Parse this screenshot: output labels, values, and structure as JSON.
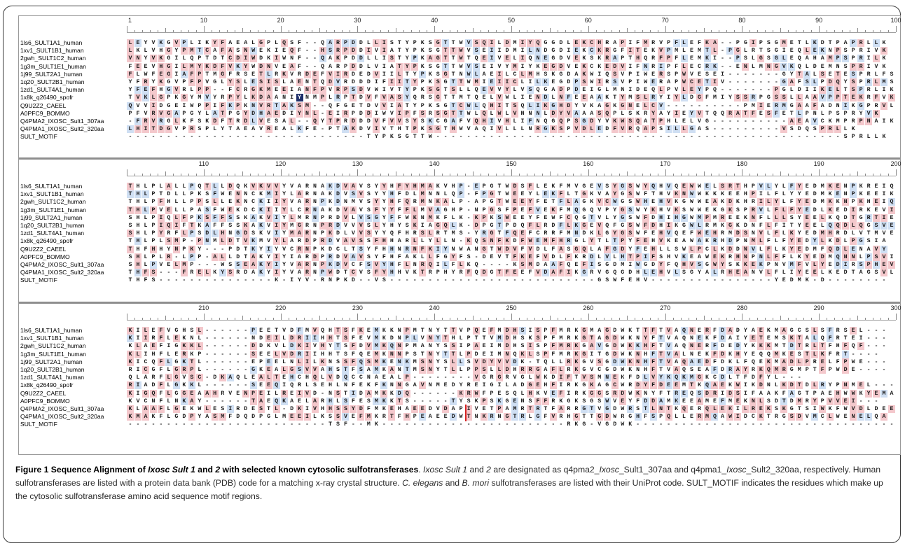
{
  "names": [
    "1ls6_SULT1A1_human",
    "1xv1_SULT1B1_human",
    "2gwh_SULT1C2_human",
    "1g3m_SULT1E1_human",
    "1j99_SULT2A1_human",
    "1q20_SULT2B1_human",
    "1zd1_SULT4A1_human",
    "1x8k_q26490_spofr",
    "Q9U2Z2_CAEEL",
    "A0PFC9_BOMMO",
    "Q4PMA2_IXOSC_Sult1_307aa",
    "Q4PMA1_IXOSC_Sult2_320aa",
    "SULT_MOTIF"
  ],
  "blocks": [
    {
      "ticks": [
        "1",
        "10",
        "20",
        "30",
        "40",
        "50",
        "60",
        "70",
        "80",
        "90",
        "100"
      ],
      "rows": [
        "LEYVKGVPLIKYFAEALGPLQSF--QARPDDLLISTYPKSGTTWVSQILDMIYQGGDLEKCHRAPIFMRVPFLEFKA--PGIPSGMETLKDTPAPRLLK",
        "LKLVHGYPMTCAFASNWEKIEQF--HSRPDDIVIATYPKSGTTWVSEIIDMILNDGDIEKCKRGFITEKVPMLEMTL-PGLRTSGIEQLEKNPSPRIVK",
        "VNYVKGILQPTDTCDIWDKIWNF--QAKPDDLLISTYPKAGTTWTQEIVELIQNEGDVEKSKRAPTHQRFPFLEMKI--PSLGSGLEQAHAMPSPRILK",
        "FEEVHGILMYKDFVKYWDNVEAF--QARPDDLVIATYPKSGTTWVSEIVYMIYKEGDVEKCKEDVIFNRIPFLECRK--ENLMNGVKQLDEMNSPRIVK",
        "FLWFEGIAFPTMGFRSETLRKVRDEFVIRDEDVIILTYPKSGTNWLAEILCLMHSKGDAKWIQSVPIWERSPWVESEI-------GYTALSETESPRLFS",
        "YFRYKGVPFPVGLYSLESISLAENTQDVRDDDIFIITYPKSGTTWMIEIICLILKEGDPSWIRSVPIWERAPWCETIV-------GAFSLPDQYSPRLMS",
        "YFEFHGVRLPP--FCRGKMEEIANFPVRPSDVWIVTYPKSGTSLLQEVVYLVSQGADPDEIGLMNIDEQLPVLEYPQ-------PGLDIIKELTSPRLIK",
        "TVKLGPKGYMVYRPYLKDAANIYNMPLRPTDVFVASYQRSGTTMTQELVWLIENDLNFEEAAKTYMSLRYIYLDGFMIYSSRPGSSLLAAVPPTEKRFVK",
        "QVVIDGEIWPPIFKPKNVRTAKSM--QFGETDVVIATYPKSGTCWLQHITSQLIKGHDYVKAGKGNELCV----------PMIERMGAAFADNIKGPRVLK",
        "PFVRVGAPGYLATPGYDHAEDIYNL-EIRPDDIWVIPFSRSGTTWLQLWLVNNNLDYVAAASQPLSKRYAYIEYVTQQRATFESFETLPNLPSPRYVK",
        "-FRVRGLKFSKDFTRDLVESAL--QYTPRDDDVFVVSYSKCGAFVQHIVHLIFNQGQPSGDYVKWSQATPHLELVG----------AEAVCKMPRPNAIK",
        "LHITDGVPRSPLYTAEAVREALKFE-PTAKDVIVTHTPKSGTHWVAQIVLLLNRGKSPVDLEDFVRQAPSILLGAS---------VSDQSPRLLK",
        "-------------------------------TYPKSGTTW-----------------------------------------------------SPRLLK"
      ]
    },
    {
      "ticks": [
        "110",
        "120",
        "130",
        "140",
        "150",
        "160",
        "170",
        "180",
        "190",
        "200"
      ],
      "rows": [
        "THLPLALLPQTLLDQKVKVVYVARNAKDVAVSYYHFYHMAKVHP-EPGTWDSFLEKFMVGEVSYGSWYQHVQEWWELSRTHPVLYLFYEDMKENPKREIQ",
        "THLPTDLLPKSFWENNCKMIYLARNAKDVSVSYYHFDLMNNLQP-FPGTWEEYLEKFLTGKVAYGSWFTHVKNWWKKKEEHPILFLYYEDMKENPKEEIK",
        "THLPFHLLPPSLLEKNCKIIYVARNPKDNMVSYYHFQRMNKALP-APGTWEEYFETFLAGKVCWGSWHEHVKGWWEAKDKHRILYLFYEDMKKNPKHEIQ",
        "THLPVELLPASFWEKDCKIIYLCRNAKDVAVSFYYFFLMVAGHP-NPGSFPEFVEKFMQGQVPYGSWYKHVKSWWEKGKSPRVLFLFYEDLKEDIRKEVI",
        "SHLPIQLFPKSFFSSKAKVIYLMRNPRDVLVSGYFFWKNMKFLK-KPKSWEEYFEWFCQGTVLYGSWFDHIHGWMPMREEKNFLLLSYEELKQDTGRTIE",
        "SHLPIQIFTKAFFSSKAKVIYMGRNPRDVVVSLYHYSKIAGQLK-DPGTPDQFLRDFLKGEVQFGSWFDHIKGWLRMKGKDNFLFITYEELQQDLQGSVE",
        "SHLPYRFLPSDLHNGDSKVIYMARNPKDLVVSYYQFHRSLRTMS-YRGTFQEFCRRFMNDKLGYGSWFEHVQEFWEHRMDSNVLFLKYEDMHRDLVTMVE",
        "THLPLSMP-PNMLDTVKMVYLARDPRDVAVSSFHHARLLYLLN-KQSNFKDFWEMFHRGLYTLTPYFEHVKEAWAKRHDPNMLFLFYEDYLKDLPGSIA",
        "THFHHYNPKY---PDTKYIYVCRNPKDCLTSYFHHNRNFKIYNWANGTWDVFVDLFASGQLAFGDYFEHLLSWLPCLKDDNVLFLKYEDMFQDLENAVY",
        "SHLPLR-LPP-ALLDTAKYIYIARDPRDVAVSYFHFAKLLFGYFS-DEVTFKEFVDLFKRDLVLHTPIFSHVKEAWEKRHNPNLFFLKYEDMQNNLPSVID",
        "SHLPVELMP---WSSEAKYIYVARNPKDVCFSVYHFLNRQILFLKQ----KSMDAAFQEFISGDMIWGDYFQHVSGWYSKKEKPNVMFVLYEDIRSPHEVID",
        "THFS---FRELKYSRDAKYIYVARNPWDTCVSFYHHVKTRPHYRFQDGTFEEFVDAFIKGRVGQGDHLEHVLSGYALRHEANVLFLIYEELKEDTAGSVL",
        "THFS---------------K-IYV-RNPKD--VS---------------------------GSWFEHV----------------YEDMK-D--------"
      ]
    },
    {
      "ticks": [
        "210",
        "220",
        "230",
        "240",
        "250",
        "260",
        "270",
        "280",
        "290",
        "300"
      ],
      "rows": [
        "KILEFVGHSL------PEETVDFMVQHTSFKEMKKNPMTNYTTVPQEFMDHSISPFMRKGMAGDWKTTFTVAQNERFDADYAEKMAGCSLSFRSEL---",
        "KIIRFLEKNL------NDEILDRIIHHTSFEVMKDNPLVNYTHLPTTVMDHSKSPFMRKGTAGDWKNYFTVAQNEKFDAIYETEMSKTALQFRTEI---",
        "KLAEFIGKKL------DDKVLDKIVHYTSFDVMKQNPMANYSSIPAEIMDHSISPFMRKGAVGDWKKHFTVAQNERFDEDYKKKMTDTRLTFHFQF---",
        "KLIHFLERKP------SEELVDRIIHHTSFQEMKNNPSTNYTTLPDEIMNQKLSPFMRKGITGDWKNHFTVALNEKFDKHYEQQMKESTLKFRT----",
        "KICQFLGKTL------EPEELNLILKNSSFQSMKENKMSNYSLLSVDYVVDK-TQLLRKGVSGDWKNHFTVAQAEDFDKLFQEKMADLPRELFPWE---",
        "RICGFLGRPL------GKEALGSVVAHSTFSAMKANTMSNYTLLPPSLLDHRRGAFLRKGVCGDWKNHFTVAQSEAFDRAYRKQMRGMPTFPWDE----",
        "QLARFLGVSC-DKAQLEALTEHCHQLVDQCCNAEALP--------VGRGRVGLWKDIFTVSMNEKFDLVYKQKMGKCDLTFDFYL---",
        "RIADFLGKKL------SEEQIQRLSEHLNFEKFKNNGAVNMEDYREIGILADGEHFIRKGKAGCWRDYFDEEMTKQAEKWIKDNLKDTDLRYPNMEL---",
        "KIGQFLGGEAAHRVENPEILREIVD-NSTIDAMKKDQ------KRWFPESQLHKVEFIRKGGSRDWKNYFTREQSDRIDSIFAAKFAGTPAEHWWKYEMAW",
        "KVCNFLNKAY------TAEQKAELARHLSFESMKKTS-----TYSKPSKGENSFFRKGKSGSWVEYFDDAMKEEAMEFMEKNLSDTDMRYPVVEI---",
        "KLAAFLGEKWLESIRDESTL-DKIVHHSSYDFMKEHAEEDVDAPIVETPAMRTRTFARRGTVGDWRSTLNTKQERQLEKILREKSKGTSIWKFWVDLDEE",
        "KMAKFLGDPYASMFDQDPGLMEEILKSSVEFMKRTFHPEAEEDWTNKRNGTRLGFVRHGTTGDWRGHFSPQLLERMQAWIDCKTRGSDVMCLWENELQA",
        "--------------------------TSF--MK------------------------RKG-VGDWK---------------------------------------"
      ]
    }
  ],
  "caption": {
    "label": "Figure 1 Sequence Alignment of",
    "label_it1": "Ixosc Sult 1",
    "label_and": "and",
    "label_2": "2",
    "label_rest": "with selected known cytosolic sulfotransferases",
    "t1": ".",
    "it2": "Ixosc Sult 1",
    "t2": "and",
    "it3": "2",
    "t3": "are designated as q4pma2_",
    "it4": "Ixosc",
    "t4": "_Sult1_307aa and q4pma1_",
    "it5": "Ixosc",
    "t5": "_Sult2_320aa, respectively. Human sulfotransferases are listed with a protein data bank (PDB) code for a matching x-ray crystal structure.",
    "it6": "C. elegans",
    "t6": "and",
    "it7": "B. mori",
    "t7": "sulfotransferases are listed with their UniProt code. SULT_MOTIF indicates the residues which make up the cytosolic sulfotransferase amino acid sequence motif regions."
  },
  "colors": {
    "pink": "#f4c8cc",
    "blue": "#cfdff3",
    "dark_blue": "#1f2f6a",
    "marker": "#d42222"
  }
}
